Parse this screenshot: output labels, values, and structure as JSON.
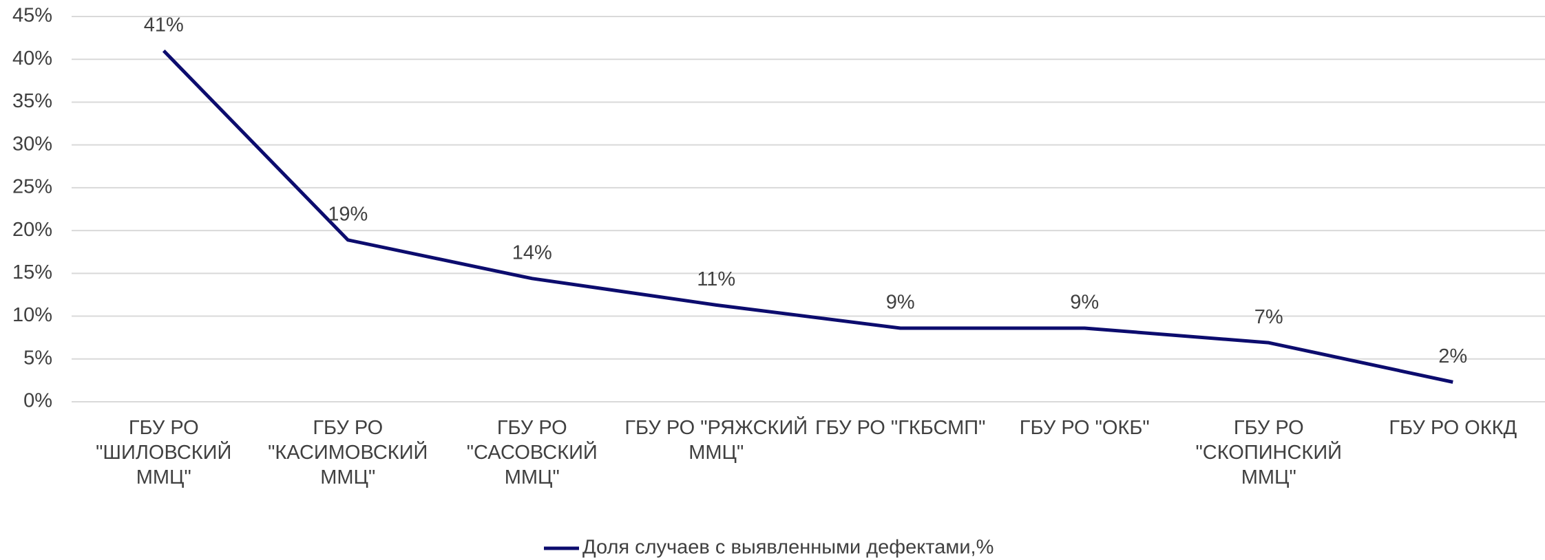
{
  "chart_data": {
    "type": "line",
    "categories": [
      "ГБУ РО \"ШИЛОВСКИЙ ММЦ\"",
      "ГБУ РО \"КАСИМОВСКИЙ ММЦ\"",
      "ГБУ РО \"САСОВСКИЙ ММЦ\"",
      "ГБУ РО \"РЯЖСКИЙ ММЦ\"",
      "ГБУ РО \"ГКБСМП\"",
      "ГБУ РО \"ОКБ\"",
      "ГБУ РО \"СКОПИНСКИЙ ММЦ\"",
      "ГБУ РО ОККД"
    ],
    "series": [
      {
        "name": "Доля случаев с выявленными дефектами,%",
        "color": "#0c0c6e",
        "values": [
          41,
          18.9,
          14.4,
          11.3,
          8.6,
          8.6,
          6.9,
          2.3
        ],
        "value_labels": [
          "41%",
          "19%",
          "14%",
          "11%",
          "9%",
          "9%",
          "7%",
          "2%"
        ]
      }
    ],
    "ylim": [
      0,
      45
    ],
    "yticks": [
      {
        "value": 0,
        "label": "0%"
      },
      {
        "value": 5,
        "label": "5%"
      },
      {
        "value": 10,
        "label": "10%"
      },
      {
        "value": 15,
        "label": "15%"
      },
      {
        "value": 20,
        "label": "20%"
      },
      {
        "value": 25,
        "label": "25%"
      },
      {
        "value": 30,
        "label": "30%"
      },
      {
        "value": 35,
        "label": "35%"
      },
      {
        "value": 40,
        "label": "40%"
      },
      {
        "value": 45,
        "label": "45%"
      }
    ],
    "grid": true,
    "legend": "bottom"
  }
}
